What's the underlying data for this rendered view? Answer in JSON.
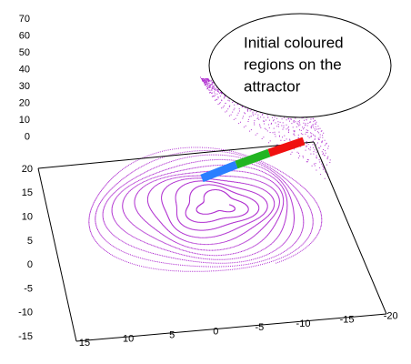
{
  "z_axis": {
    "ticks": [
      "70",
      "60",
      "50",
      "40",
      "30",
      "20",
      "10",
      "0"
    ]
  },
  "y_axis": {
    "ticks": [
      "20",
      "15",
      "10",
      "5",
      "0",
      "-5",
      "-10",
      "-15"
    ]
  },
  "x_axis": {
    "ticks": [
      "15",
      "10",
      "5",
      "0",
      "-5",
      "-10",
      "-15",
      "-20"
    ]
  },
  "callout": {
    "lines": [
      "Initial coloured",
      "regions on the",
      "attractor"
    ]
  }
}
